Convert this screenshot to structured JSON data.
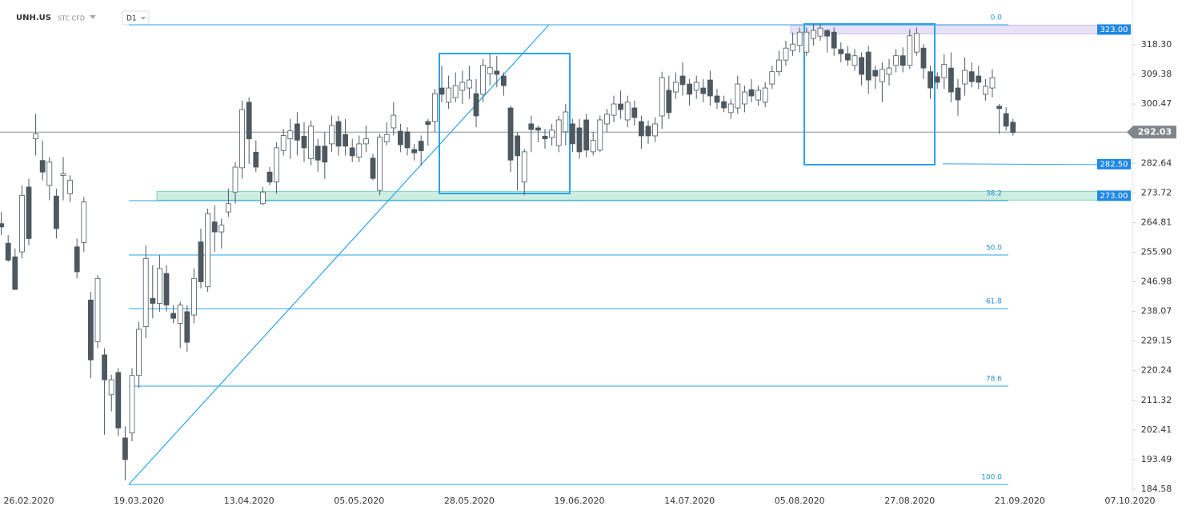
{
  "chart_data": {
    "type": "candlestick",
    "title": "UNH.US",
    "subtitle": "STC CFD",
    "interval": "D1",
    "categories": [
      null,
      null,
      null,
      null,
      "26.02.2020",
      null,
      null,
      null,
      null,
      null,
      null,
      null,
      null,
      null,
      null,
      null,
      null,
      null,
      null,
      null,
      "19.03.2020",
      null,
      null,
      null,
      null,
      null,
      null,
      null,
      null,
      null,
      null,
      null,
      null,
      null,
      null,
      null,
      "13.04.2020",
      null,
      null,
      null,
      null,
      null,
      null,
      null,
      null,
      null,
      null,
      null,
      null,
      null,
      null,
      null,
      "05.05.2020",
      null,
      null,
      null,
      null,
      null,
      null,
      null,
      null,
      null,
      null,
      null,
      null,
      null,
      null,
      null,
      "28.05.2020",
      null,
      null,
      null,
      null,
      null,
      null,
      null,
      null,
      null,
      null,
      null,
      null,
      null,
      null,
      null,
      "19.06.2020",
      null,
      null,
      null,
      null,
      null,
      null,
      null,
      null,
      null,
      null,
      null,
      null,
      null,
      null,
      null,
      "14.07.2020",
      null,
      null,
      null,
      null,
      null,
      null,
      null,
      null,
      null,
      null,
      null,
      null,
      null,
      null,
      null,
      "05.08.2020",
      null,
      null,
      null,
      null,
      null,
      null,
      null,
      null,
      null,
      null,
      null,
      null,
      null,
      null,
      null,
      "27.08.2020",
      null,
      null,
      null,
      null,
      null,
      null,
      null,
      null,
      null,
      null,
      null,
      null,
      null,
      null,
      null,
      "21.09.2020",
      null,
      null,
      null,
      null,
      null,
      null,
      null,
      null,
      null,
      null,
      null,
      null,
      null,
      null,
      null,
      "07.10.2020"
    ],
    "open": [
      264.5,
      258.6,
      254.5,
      256,
      275.5,
      290,
      283.5,
      276,
      272.8,
      279,
      273.5,
      257.5,
      258.8,
      241.5,
      229,
      225,
      213,
      219.7,
      200,
      201.5,
      218.8,
      233.5,
      242,
      240.5,
      249.5,
      237.5,
      234.5,
      238,
      237,
      259,
      245.5,
      265,
      262,
      268,
      274,
      281.3,
      301,
      286,
      270.5,
      280,
      277,
      286.5,
      290,
      294.5,
      290.8,
      284,
      287.8,
      287.8,
      288.5,
      295.2,
      291.3,
      287.3,
      284.5,
      288.5,
      284.2,
      274.5,
      289.1,
      293.3,
      292.3,
      292.1,
      286.8,
      289.3,
      295.2,
      295.2,
      305.3,
      301,
      302.4,
      304.6,
      305.3,
      303.6,
      303.4,
      309.6,
      310.4,
      308.9,
      299.3,
      290.9,
      277,
      294.5,
      293.3,
      290.8,
      290.4,
      288,
      292.1,
      294.5,
      293.3,
      295.7,
      286.1,
      286.6,
      294.5,
      297.1,
      300.5,
      295.7,
      299.3,
      295.2,
      293.8,
      290.9,
      296.9,
      304.6,
      304.1,
      308.9,
      306.5,
      304.6,
      305.3,
      307.7,
      302.9,
      301.2,
      297.9,
      299.3,
      300.5,
      304.8,
      301.7,
      301,
      306.5,
      310.2,
      313.7,
      316.6,
      318.1,
      316.1,
      320.2,
      320.9,
      322.6,
      322.1,
      316.9,
      315.6,
      312.1,
      314.5,
      316.1,
      310.6,
      307.2,
      309.4,
      312.1,
      315,
      312.1,
      316.1,
      317.3,
      310.2,
      308.7,
      308.4,
      311.3,
      305.3,
      306.5,
      310.2,
      308.9,
      303.4,
      305.3,
      299.8,
      297.6,
      295,
      null,
      null,
      null,
      null,
      null,
      null,
      null,
      null,
      null,
      null,
      null,
      null,
      null,
      null,
      null,
      null,
      null
    ],
    "high": [
      268,
      261,
      257,
      276,
      278,
      297.5,
      289.5,
      284.5,
      275,
      284.5,
      279,
      260,
      272.5,
      244,
      249,
      227,
      219,
      221,
      203.5,
      221,
      235,
      258,
      252,
      255,
      252,
      240,
      241,
      240,
      251,
      263,
      269,
      270,
      266,
      275,
      283,
      301.5,
      302.5,
      289.5,
      275.5,
      281.5,
      289,
      293,
      296,
      298,
      295,
      295.5,
      290,
      292,
      297,
      297,
      296,
      290,
      291,
      294,
      285.5,
      291.5,
      295,
      301,
      294.5,
      293.5,
      288.5,
      291,
      296,
      305,
      312,
      309,
      310,
      310.5,
      312,
      308,
      314,
      315.5,
      315,
      310,
      300,
      292,
      287,
      297,
      294,
      293,
      294.5,
      296.9,
      300.5,
      296,
      296,
      297.5,
      292,
      297,
      299,
      303,
      304.5,
      303,
      301.5,
      297,
      295.5,
      296.5,
      310.2,
      309,
      310,
      313,
      308,
      309,
      308,
      310.5,
      305,
      303,
      302,
      309,
      306,
      308,
      306,
      307,
      312,
      316.5,
      319.5,
      322,
      323.5,
      323.5,
      324.5,
      324.5,
      323,
      323.5,
      319,
      318,
      317,
      316,
      318,
      312,
      313,
      314,
      317,
      317.5,
      323,
      323.5,
      318.5,
      312,
      310,
      315.5,
      316,
      308,
      314.5,
      313,
      312,
      308,
      311,
      300.5,
      299.5,
      296,
      null,
      null,
      null,
      null,
      null,
      null,
      null,
      null,
      null,
      null,
      null,
      null,
      null,
      null,
      null,
      null,
      null
    ],
    "low": [
      261,
      253,
      244.5,
      254,
      258,
      285,
      277.5,
      271.5,
      260,
      271.5,
      271,
      248,
      256,
      218,
      227,
      201,
      208,
      200.5,
      187.3,
      199,
      215,
      230,
      236,
      238,
      238,
      234.5,
      227,
      226,
      234.5,
      245,
      244,
      256,
      257,
      266.5,
      270.5,
      278,
      282.5,
      280,
      270,
      276,
      273.5,
      285,
      284,
      285,
      283,
      282,
      280,
      278,
      286,
      285,
      285,
      283,
      283,
      286,
      277.5,
      273,
      288,
      291,
      286,
      285,
      283.5,
      282,
      288,
      292,
      301,
      299,
      301,
      300.5,
      302,
      293.5,
      301,
      306,
      305.5,
      303,
      280,
      274.5,
      273,
      286,
      289,
      287,
      288,
      286,
      288,
      286,
      284,
      284.5,
      285,
      286,
      292,
      295,
      296,
      293.5,
      294,
      287,
      288.5,
      289,
      293,
      296,
      302,
      303,
      300,
      302,
      301,
      300,
      299,
      298,
      296,
      297.5,
      298,
      301,
      300,
      299.5,
      305,
      309,
      312,
      315,
      316,
      315,
      318,
      319.5,
      316,
      315,
      313,
      312,
      310.5,
      306,
      303.5,
      305,
      301,
      306,
      310,
      310,
      311,
      315,
      308,
      302,
      305,
      305,
      301,
      297,
      303,
      305.5,
      305,
      301.5,
      302.5,
      291.5,
      292.5,
      291,
      null,
      null,
      null,
      null,
      null,
      null,
      null,
      null,
      null,
      null,
      null,
      null,
      null,
      null,
      null,
      null,
      null
    ],
    "close": [
      263.5,
      253.5,
      244.7,
      273,
      260,
      291.5,
      280,
      283,
      263,
      279.5,
      277.5,
      250,
      271,
      223.5,
      248,
      217.5,
      217.5,
      203,
      193.5,
      218.8,
      232.7,
      254,
      240.5,
      251,
      240,
      236,
      240,
      228.8,
      248,
      247,
      267.5,
      262,
      264,
      270.5,
      281.5,
      298.8,
      290,
      281.5,
      274,
      277,
      287.3,
      291,
      292.4,
      289.6,
      287.3,
      293.8,
      283.6,
      283,
      294,
      287.8,
      287.8,
      284.9,
      288.5,
      290,
      278.1,
      290.5,
      291.3,
      297.1,
      288.2,
      287.3,
      285.8,
      286.4,
      294.3,
      303.6,
      303.4,
      305.3,
      306,
      307,
      307.7,
      296.9,
      312.1,
      311.5,
      309.4,
      306,
      283.6,
      284.9,
      286.1,
      292.8,
      292.6,
      290,
      292.6,
      295.7,
      298.1,
      288.5,
      286.1,
      286.6,
      289.6,
      295.7,
      297.4,
      300.5,
      298.8,
      301,
      296.4,
      290.9,
      290.9,
      294.5,
      308.4,
      297.9,
      307,
      306.3,
      303.4,
      307,
      303.6,
      302.9,
      301,
      299.3,
      300.5,
      306.5,
      304.1,
      302.9,
      304.6,
      305.3,
      310.2,
      313.7,
      317.3,
      318.5,
      322.1,
      322.1,
      322.6,
      323.3,
      320.9,
      317.3,
      315.6,
      313.7,
      315,
      309.4,
      307.7,
      308.9,
      310.9,
      311.3,
      315,
      312.1,
      321,
      321.7,
      311.3,
      305.3,
      307,
      312.4,
      304.1,
      301.7,
      310.6,
      307.2,
      307,
      305.8,
      308.4,
      299.1,
      293.8,
      291.9,
      null,
      null,
      null,
      null,
      null,
      null,
      null,
      null,
      null,
      null,
      null,
      null,
      null,
      null,
      null,
      null,
      null
    ],
    "up_color": "#ffffff",
    "down_color": "#4d5860",
    "ylim": [
      182.66,
      331.77
    ],
    "yticks": [
      {
        "value": 318.3,
        "label": "318.30"
      },
      309.38,
      300.47,
      282.64,
      273.72,
      264.81,
      {
        "value": 255.9,
        "label": "255.90"
      },
      246.98,
      238.07,
      229.15,
      220.24,
      211.32,
      202.41,
      193.49,
      184.58
    ],
    "grid": false,
    "last_price": 292.03,
    "price_tags": [
      {
        "value": 323,
        "label": "323.00"
      },
      {
        "value": 282.5,
        "label": "282.50"
      },
      {
        "value": 273,
        "label": "273.00"
      }
    ],
    "fib_levels": [
      {
        "name": "0.0",
        "price": 324.3
      },
      {
        "name": "38.2",
        "price": 271.4
      },
      {
        "name": "50.0",
        "price": 255.05
      },
      {
        "name": "61.8",
        "price": 238.9
      },
      {
        "name": "78.6",
        "price": 215.6
      },
      {
        "name": "100.0",
        "price": 186.0
      }
    ]
  }
}
